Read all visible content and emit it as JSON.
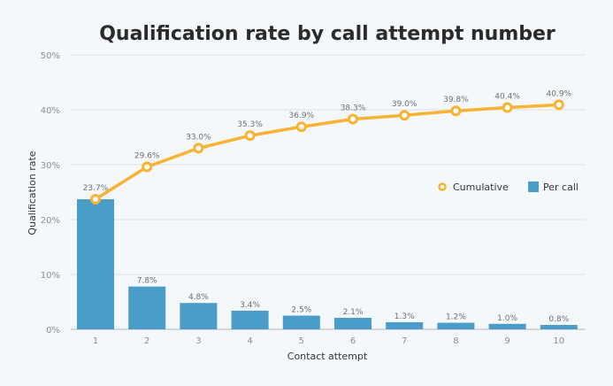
{
  "chart_data": {
    "type": "bar+line",
    "title": "Qualification rate by call attempt number",
    "xlabel": "Contact attempt",
    "ylabel": "Qualification rate",
    "categories": [
      "1",
      "2",
      "3",
      "4",
      "5",
      "6",
      "7",
      "8",
      "9",
      "10"
    ],
    "ylim": [
      0,
      50
    ],
    "yticks": [
      "0%",
      "10%",
      "20%",
      "30%",
      "40%",
      "50%"
    ],
    "grid": true,
    "legend_position": "right",
    "series": [
      {
        "name": "Cumulative",
        "type": "line",
        "color": "#f9b233",
        "values": [
          23.7,
          29.6,
          33.0,
          35.3,
          36.9,
          38.3,
          39.0,
          39.8,
          40.4,
          40.9
        ],
        "labels": [
          "23.7%",
          "29.6%",
          "33.0%",
          "35.3%",
          "36.9%",
          "38.3%",
          "39.0%",
          "39.8%",
          "40.4%",
          "40.9%"
        ]
      },
      {
        "name": "Per call",
        "type": "bar",
        "color": "#4a9cc9",
        "values": [
          23.7,
          7.8,
          4.8,
          3.4,
          2.5,
          2.1,
          1.3,
          1.2,
          1.0,
          0.8
        ],
        "labels": [
          "23.7%",
          "7.8%",
          "4.8%",
          "3.4%",
          "2.5%",
          "2.1%",
          "1.3%",
          "1.2%",
          "1.0%",
          "0.8%"
        ]
      }
    ]
  }
}
